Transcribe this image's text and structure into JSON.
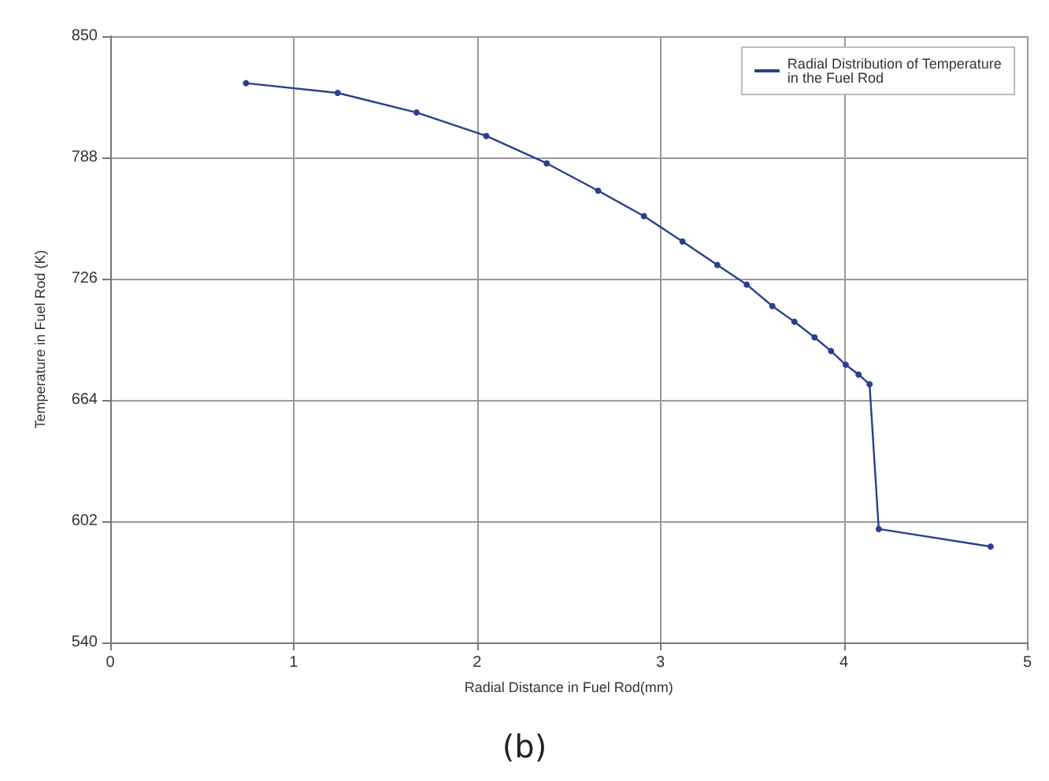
{
  "chart_data": {
    "type": "line",
    "xlabel": "Radial Distance in Fuel Rod(mm)",
    "ylabel": "Temperature in Fuel Rod (K)",
    "annotations": [
      "(b)"
    ],
    "x": [
      0.74,
      1.24,
      1.67,
      2.05,
      2.38,
      2.66,
      2.91,
      3.12,
      3.31,
      3.47,
      3.61,
      3.73,
      3.84,
      3.93,
      4.01,
      4.08,
      4.14,
      4.19,
      4.8
    ],
    "series": [
      {
        "name": "Radial Distribution of Temperature\nin the Fuel Rod",
        "color": "#2a3f8f",
        "values": [
          826,
          821,
          811,
          799,
          785,
          771,
          758,
          745,
          733,
          723,
          712,
          704,
          696,
          689,
          682,
          677,
          672,
          598,
          589
        ]
      }
    ],
    "xlim": [
      0,
      5
    ],
    "xticks": [
      0,
      1,
      2,
      3,
      4,
      5
    ],
    "ylim": [
      540,
      850
    ],
    "yticks": [
      540,
      602,
      664,
      726,
      788,
      850
    ],
    "grid": true,
    "legend": "top right",
    "marker": "circle",
    "line_style": "solid"
  }
}
